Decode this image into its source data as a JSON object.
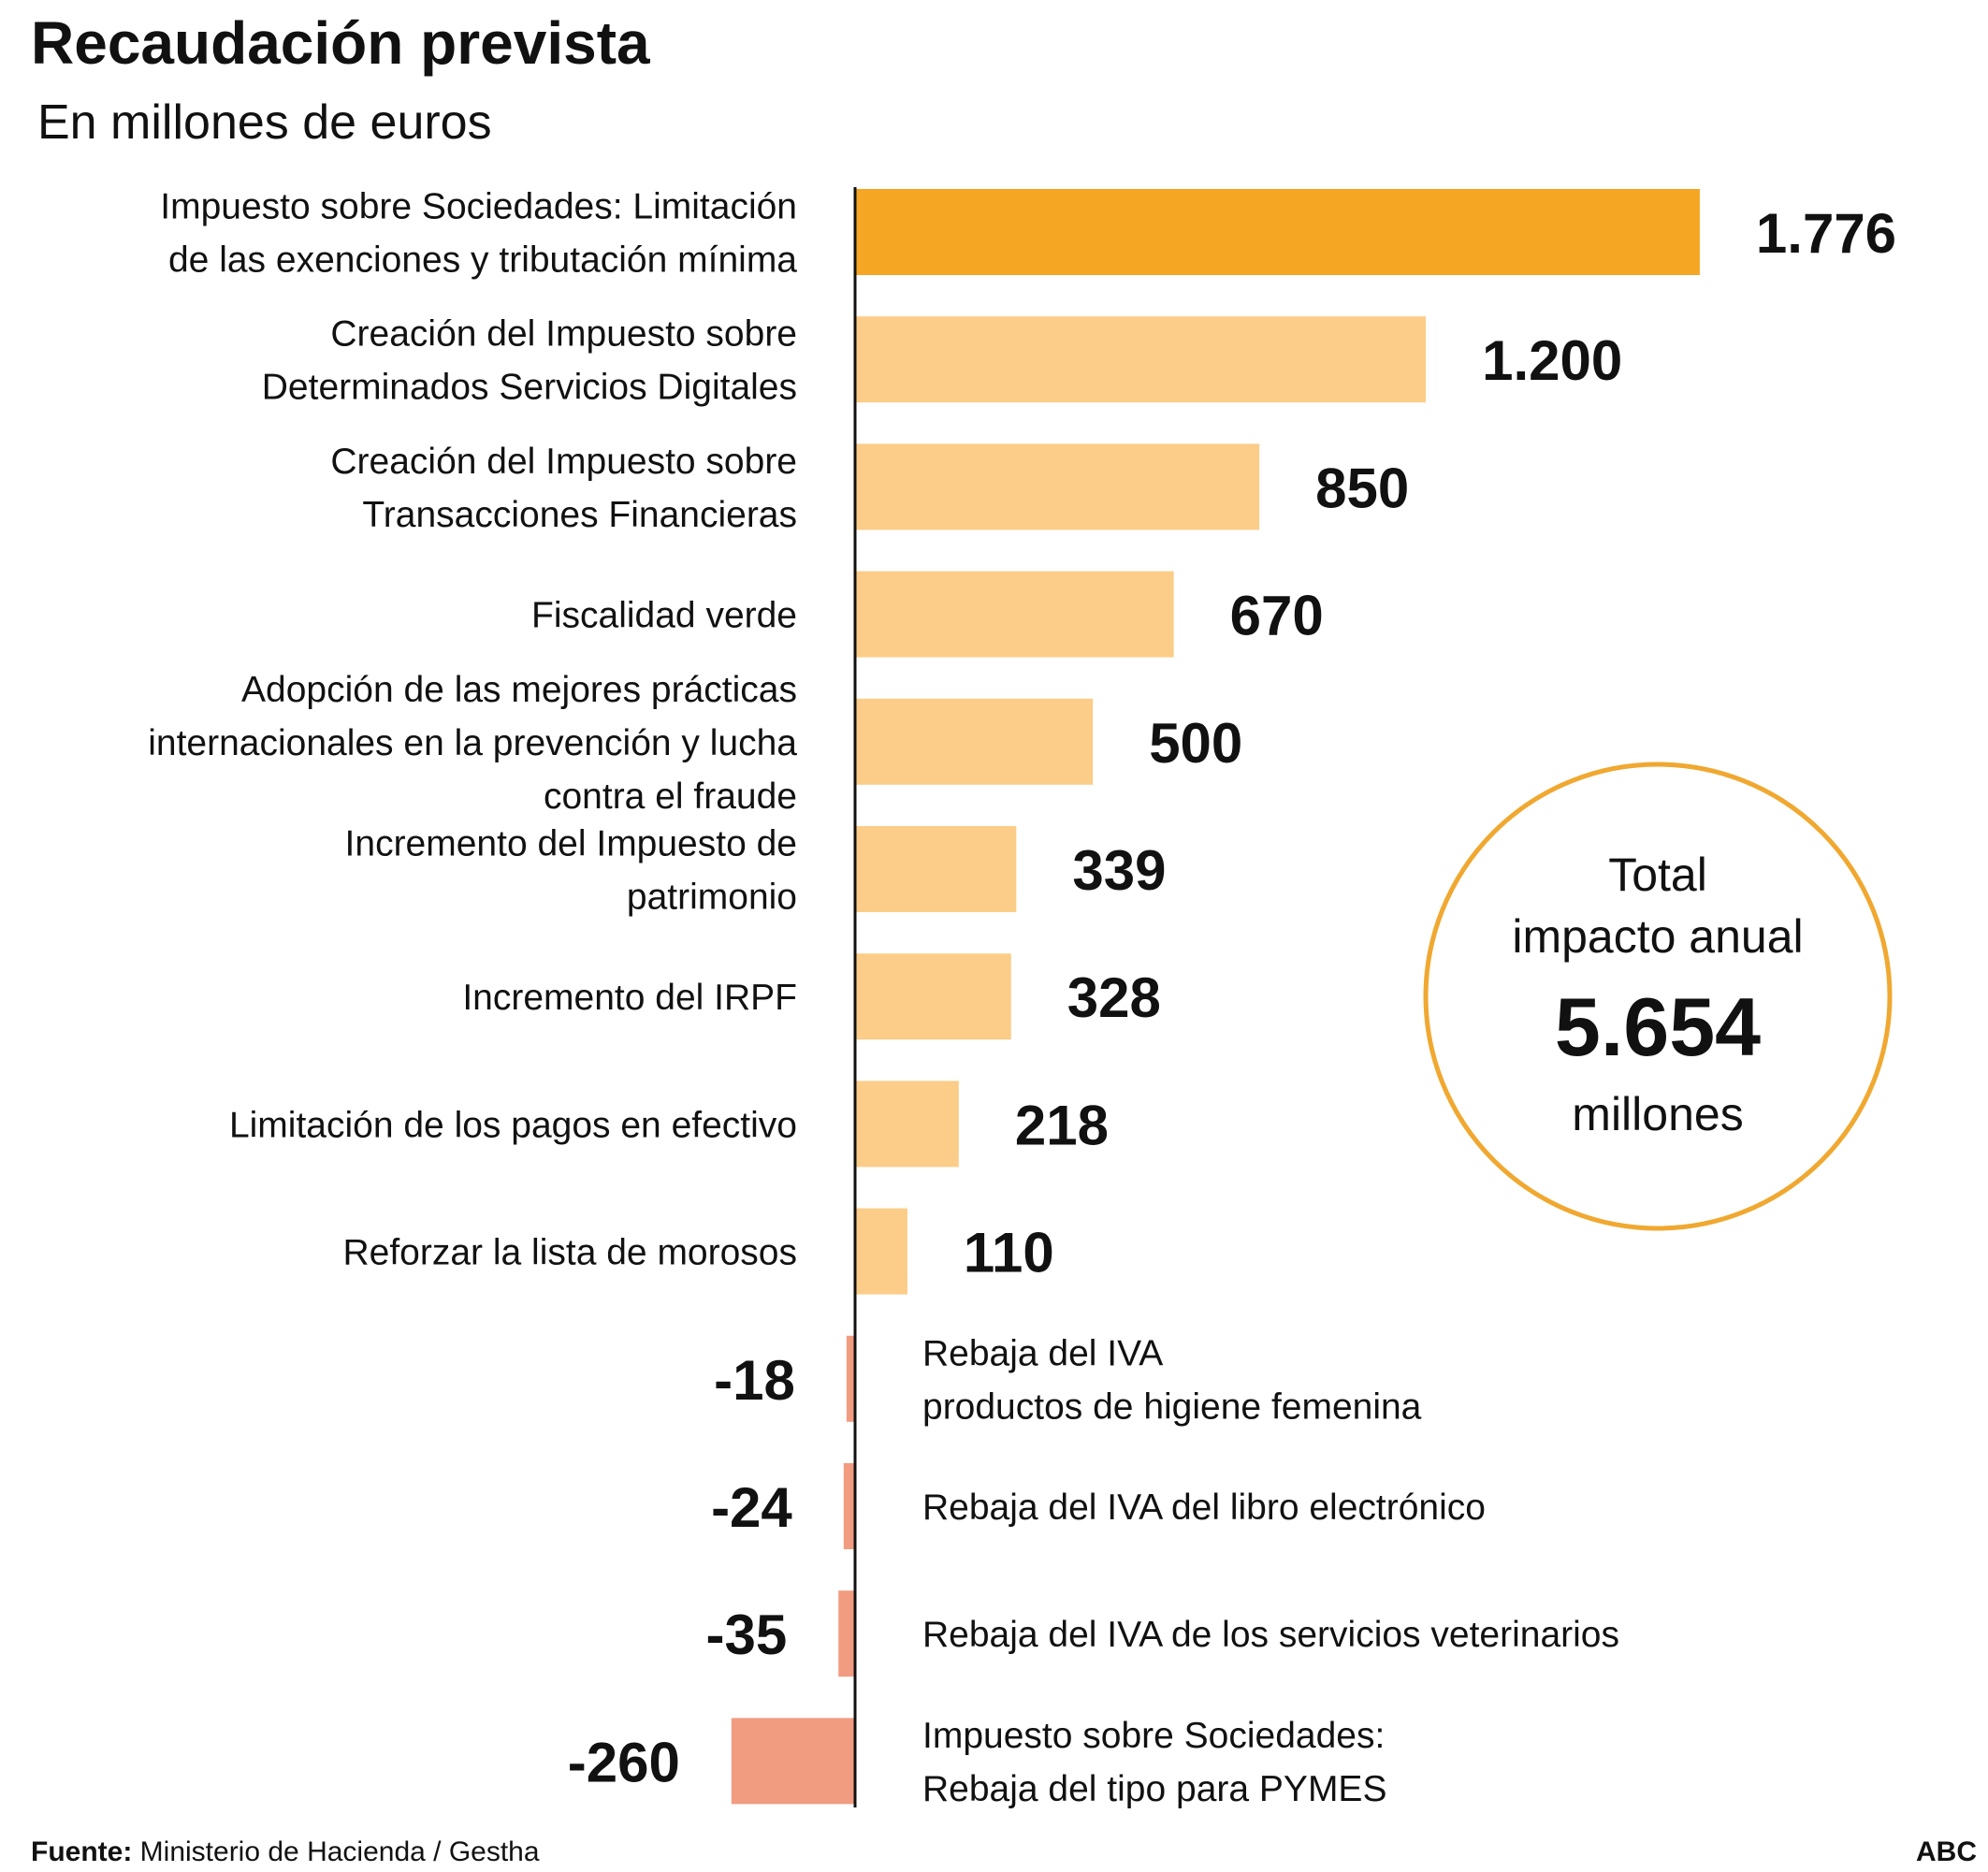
{
  "chart_data": {
    "type": "bar",
    "orientation": "horizontal",
    "title": "Recaudación prevista",
    "subtitle": "En millones de euros",
    "categories": [
      [
        "Impuesto sobre Sociedades: Limitación",
        "de las exenciones y tributación mínima"
      ],
      [
        "Creación del Impuesto sobre",
        "Determinados Servicios Digitales"
      ],
      [
        "Creación del Impuesto sobre",
        "Transacciones Financieras"
      ],
      [
        "Fiscalidad verde"
      ],
      [
        "Adopción de las mejores prácticas",
        "internacionales en la prevención y lucha",
        "contra el fraude"
      ],
      [
        "Incremento del Impuesto de",
        "patrimonio"
      ],
      [
        "Incremento del IRPF"
      ],
      [
        "Limitación de los pagos en efectivo"
      ],
      [
        "Reforzar la lista de morosos"
      ],
      [
        "Rebaja del IVA",
        "productos de higiene femenina"
      ],
      [
        "Rebaja del IVA del libro electrónico"
      ],
      [
        "Rebaja del IVA de los servicios veterinarios"
      ],
      [
        "Impuesto sobre Sociedades:",
        "Rebaja del tipo para PYMES"
      ]
    ],
    "values": [
      1776,
      1200,
      850,
      670,
      500,
      339,
      328,
      218,
      110,
      -18,
      -24,
      -35,
      -260
    ],
    "value_labels": [
      "1.776",
      "1.200",
      "850",
      "670",
      "500",
      "339",
      "328",
      "218",
      "110",
      "-18",
      "-24",
      "-35",
      "-260"
    ],
    "highlight_index": 0,
    "colors": {
      "highlight": "#F5A623",
      "positive": "#FBCD88",
      "negative": "#F19C81",
      "axis": "#111111",
      "circle": "#F0A830"
    },
    "total": {
      "line1": "Total",
      "line2": "impacto anual",
      "value": "5.654",
      "unit": "millones"
    },
    "xlim": [
      -260,
      1776
    ],
    "grid": false,
    "legend": "none"
  },
  "footer": {
    "source_label": "Fuente:",
    "source_text": " Ministerio de Hacienda / Gestha",
    "brand": "ABC"
  }
}
